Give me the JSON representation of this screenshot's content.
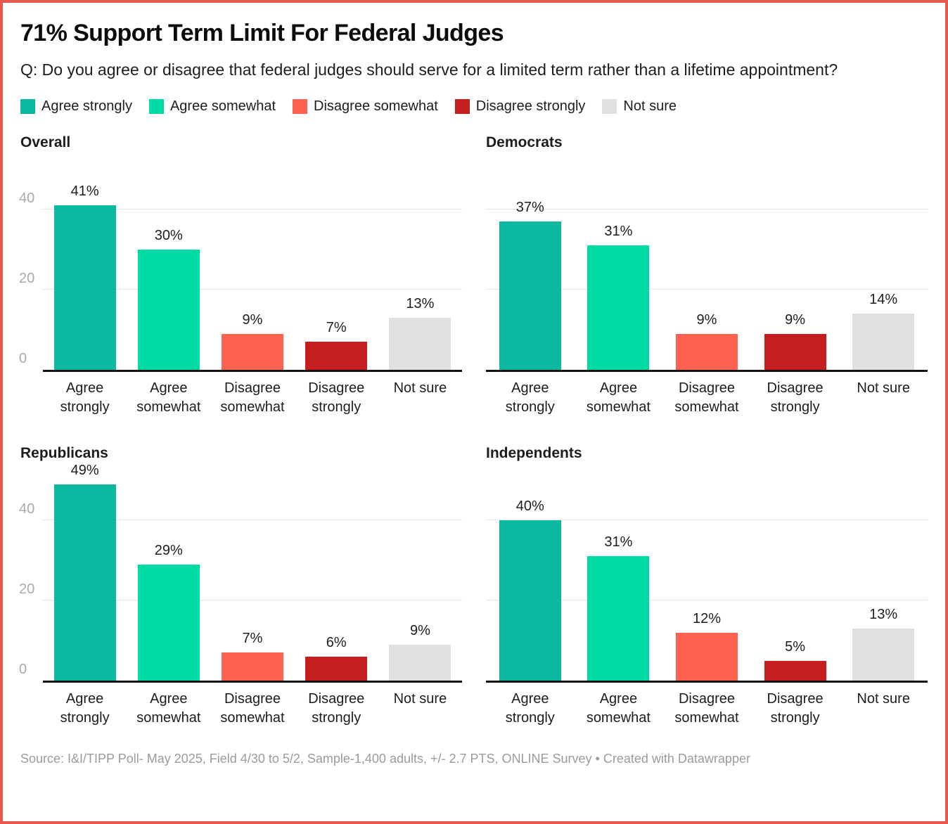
{
  "frame": {
    "border_color": "#e85a4f",
    "background": "#ffffff"
  },
  "header": {
    "title": "71% Support Term Limit For Federal Judges",
    "subtitle": "Q: Do you agree or disagree that federal judges should serve for a limited term rather than a lifetime appointment?"
  },
  "legend": {
    "items": [
      {
        "label": "Agree strongly",
        "color": "#0db8a1"
      },
      {
        "label": "Agree somewhat",
        "color": "#00dba6"
      },
      {
        "label": "Disagree somewhat",
        "color": "#ff6150"
      },
      {
        "label": "Disagree strongly",
        "color": "#c41e1e"
      },
      {
        "label": "Not sure",
        "color": "#e0e0e0"
      }
    ]
  },
  "chart_data": {
    "type": "bar",
    "title": "71% Support Term Limit For Federal Judges",
    "categories": [
      "Agree strongly",
      "Agree somewhat",
      "Disagree somewhat",
      "Disagree strongly",
      "Not sure"
    ],
    "colors": [
      "#0db8a1",
      "#00dba6",
      "#ff6150",
      "#c41e1e",
      "#e0e0e0"
    ],
    "value_suffix": "%",
    "ylim": [
      0,
      50
    ],
    "yticks": [
      0,
      20,
      40
    ],
    "grid": true,
    "legend_position": "top",
    "panels": [
      {
        "title": "Overall",
        "show_yticks": true,
        "values": [
          41,
          30,
          9,
          7,
          13
        ]
      },
      {
        "title": "Democrats",
        "show_yticks": false,
        "values": [
          37,
          31,
          9,
          9,
          14
        ]
      },
      {
        "title": "Republicans",
        "show_yticks": true,
        "values": [
          49,
          29,
          7,
          6,
          9
        ]
      },
      {
        "title": "Independents",
        "show_yticks": false,
        "values": [
          40,
          31,
          12,
          5,
          13
        ]
      }
    ]
  },
  "footer": {
    "source": "Source: I&I/TIPP Poll- May 2025, Field 4/30 to 5/2, Sample-1,400 adults, +/- 2.7 PTS, ONLINE Survey • Created with Datawrapper"
  }
}
